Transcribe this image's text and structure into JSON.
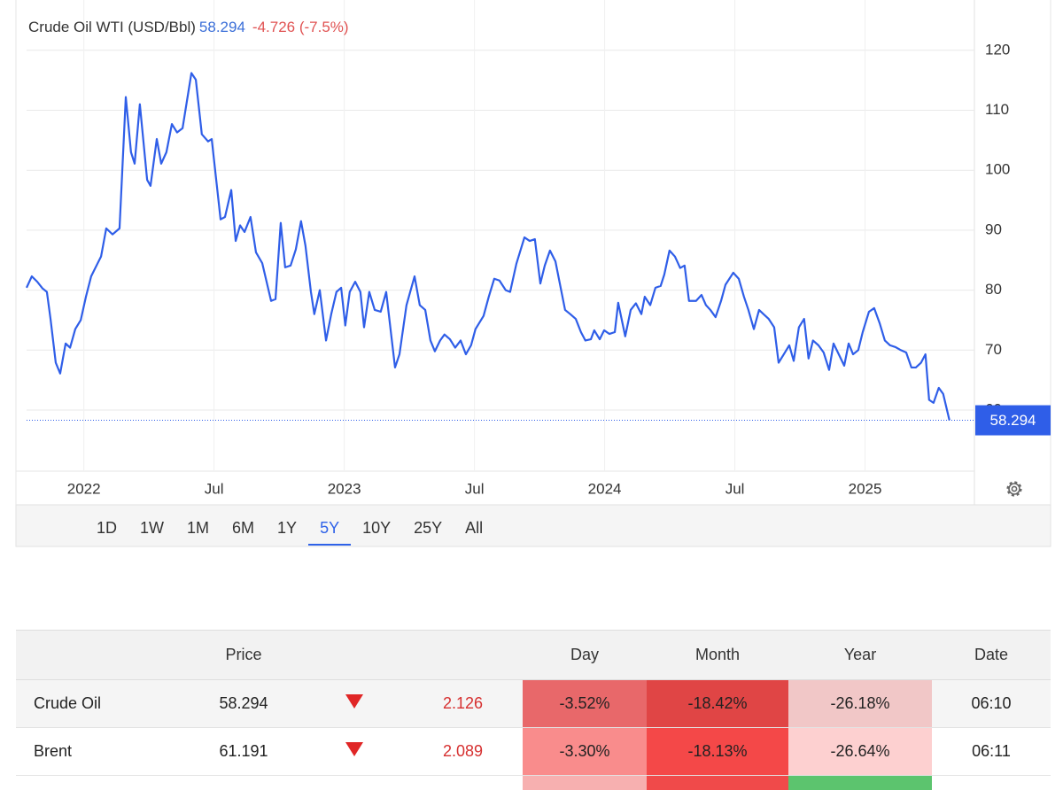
{
  "chart_data": {
    "type": "line",
    "title": "Crude Oil WTI (USD/Bbl)",
    "series": [
      {
        "name": "Crude Oil WTI",
        "color": "#2f5ee8",
        "x": [
          2021.78,
          2021.8,
          2021.821,
          2021.841,
          2021.858,
          2021.872,
          2021.892,
          2021.909,
          2021.93,
          2021.947,
          2021.967,
          2021.988,
          2022.008,
          2022.028,
          2022.052,
          2022.066,
          2022.086,
          2022.11,
          2022.137,
          2022.161,
          2022.181,
          2022.195,
          2022.215,
          2022.243,
          2022.256,
          2022.28,
          2022.297,
          2022.317,
          2022.338,
          2022.358,
          2022.379,
          2022.413,
          2022.43,
          2022.453,
          2022.477,
          2022.491,
          2022.525,
          2022.542,
          2022.566,
          2022.583,
          2022.6,
          2022.617,
          2022.64,
          2022.661,
          2022.685,
          2022.719,
          2022.736,
          2022.756,
          2022.773,
          2022.794,
          2022.814,
          2022.834,
          2022.851,
          2022.872,
          2022.885,
          2022.906,
          2022.93,
          2022.95,
          2022.97,
          2022.988,
          2023.004,
          2023.021,
          2023.042,
          2023.062,
          2023.076,
          2023.096,
          2023.117,
          2023.14,
          2023.161,
          2023.195,
          2023.212,
          2023.239,
          2023.27,
          2023.29,
          2023.311,
          2023.331,
          2023.348,
          2023.368,
          2023.385,
          2023.406,
          2023.426,
          2023.447,
          2023.467,
          2023.487,
          2023.504,
          2023.535,
          2023.555,
          2023.576,
          2023.596,
          2023.62,
          2023.637,
          2023.661,
          2023.692,
          2023.712,
          2023.732,
          2023.753,
          2023.77,
          2023.79,
          2023.811,
          2023.848,
          2023.868,
          2023.889,
          2023.909,
          2023.926,
          2023.947,
          2023.96,
          2023.981,
          2023.998,
          2024.018,
          2024.039,
          2024.052,
          2024.079,
          2024.1,
          2024.12,
          2024.141,
          2024.154,
          2024.175,
          2024.195,
          2024.215,
          2024.229,
          2024.249,
          2024.27,
          2024.29,
          2024.307,
          2024.324,
          2024.351,
          2024.372,
          2024.389,
          2024.406,
          2024.426,
          2024.447,
          2024.464,
          2024.494,
          2024.515,
          2024.535,
          2024.552,
          2024.573,
          2024.593,
          2024.61,
          2024.63,
          2024.651,
          2024.668,
          2024.688,
          2024.709,
          2024.726,
          2024.746,
          2024.766,
          2024.783,
          2024.8,
          2024.821,
          2024.841,
          2024.862,
          2024.879,
          2024.899,
          2024.92,
          2024.937,
          2024.954,
          2024.974,
          2024.991,
          2025.015,
          2025.035,
          2025.056,
          2025.076,
          2025.096,
          2025.117,
          2025.137,
          2025.158,
          2025.178,
          2025.195,
          2025.215,
          2025.232,
          2025.246,
          2025.263,
          2025.283,
          2025.3,
          2025.324
        ],
        "values": [
          80.4,
          82.3,
          81.4,
          80.3,
          79.7,
          75.2,
          67.9,
          66.1,
          71.1,
          70.4,
          73.5,
          75.0,
          78.9,
          82.3,
          84.4,
          85.6,
          90.3,
          89.3,
          90.3,
          112.2,
          103.0,
          101.1,
          111.0,
          98.4,
          97.4,
          105.2,
          101.1,
          103.0,
          107.7,
          106.3,
          107.0,
          116.2,
          115.1,
          106.0,
          104.8,
          105.2,
          91.8,
          92.2,
          96.7,
          88.2,
          90.8,
          89.7,
          92.2,
          86.3,
          84.5,
          78.2,
          78.5,
          91.2,
          83.8,
          84.1,
          86.8,
          91.5,
          87.4,
          79.7,
          76.0,
          80.0,
          71.6,
          76.0,
          79.7,
          80.4,
          74.1,
          79.7,
          81.4,
          79.7,
          73.8,
          79.7,
          76.7,
          76.4,
          79.7,
          67.1,
          69.3,
          77.5,
          82.3,
          77.5,
          76.7,
          71.6,
          69.8,
          71.6,
          72.6,
          71.8,
          70.4,
          71.6,
          69.3,
          70.8,
          73.5,
          75.7,
          78.9,
          81.9,
          81.6,
          80.0,
          79.7,
          84.4,
          88.8,
          88.2,
          88.5,
          81.1,
          84.1,
          86.6,
          84.8,
          76.7,
          76.0,
          75.2,
          73.0,
          71.6,
          71.8,
          73.3,
          71.8,
          73.3,
          72.7,
          73.0,
          77.9,
          72.3,
          76.7,
          77.8,
          76.0,
          78.9,
          77.5,
          80.4,
          80.7,
          82.6,
          86.6,
          85.6,
          83.7,
          84.1,
          78.2,
          78.2,
          79.2,
          77.5,
          76.7,
          75.5,
          78.2,
          80.9,
          82.9,
          81.9,
          78.9,
          76.7,
          73.5,
          76.7,
          76.0,
          75.2,
          73.8,
          67.9,
          69.3,
          70.8,
          68.2,
          73.8,
          75.2,
          68.6,
          71.6,
          70.8,
          69.6,
          66.7,
          71.1,
          69.3,
          67.4,
          71.1,
          69.3,
          70.0,
          73.0,
          76.4,
          77.0,
          74.5,
          71.6,
          70.8,
          70.5,
          70.0,
          69.6,
          67.1,
          67.1,
          67.9,
          69.3,
          61.7,
          61.2,
          63.7,
          62.7,
          58.294
        ]
      }
    ],
    "xlim": [
      2021.78,
      2025.42
    ],
    "xticks": [
      {
        "value": 2022,
        "label": "2022"
      },
      {
        "value": 2022.5,
        "label": "Jul"
      },
      {
        "value": 2023,
        "label": "2023"
      },
      {
        "value": 2023.5,
        "label": "Jul"
      },
      {
        "value": 2024,
        "label": "2024"
      },
      {
        "value": 2024.5,
        "label": "Jul"
      },
      {
        "value": 2025,
        "label": "2025"
      }
    ],
    "ylim": [
      50,
      127
    ],
    "yticks": [
      60,
      70,
      80,
      90,
      100,
      110,
      120
    ],
    "grid": true
  },
  "header": {
    "change": "-4.726 (-7.5%)"
  },
  "ranges": [
    "1D",
    "1W",
    "1M",
    "6M",
    "1Y",
    "5Y",
    "10Y",
    "25Y",
    "All"
  ],
  "selected_range": "5Y",
  "table": {
    "header": [
      "Price",
      "Day",
      "Month",
      "Year",
      "Date"
    ],
    "rows": [
      {
        "name": "Crude Oil",
        "price": "58.294",
        "change": "2.126",
        "day": "-3.52%",
        "month": "-18.42%",
        "year": "-26.18%",
        "date": "06:10"
      },
      {
        "name": "Brent",
        "price": "61.191",
        "change": "2.089",
        "day": "-3.30%",
        "month": "-18.13%",
        "year": "-26.64%",
        "date": "06:11"
      }
    ]
  }
}
